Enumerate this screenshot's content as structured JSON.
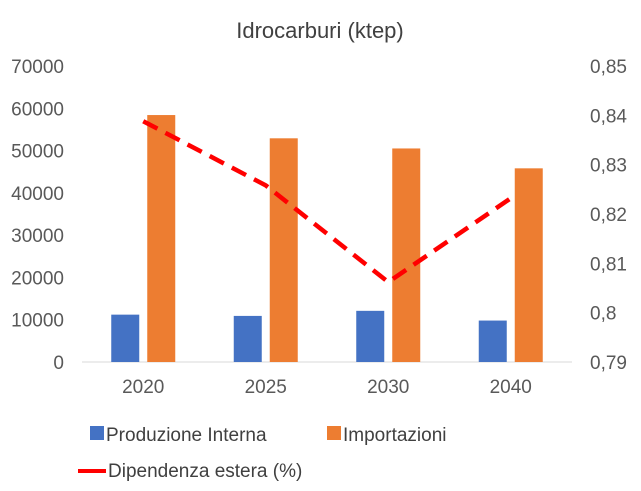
{
  "chart_data": {
    "type": "bar",
    "title": "Idrocarburi (ktep)",
    "categories": [
      "2020",
      "2025",
      "2030",
      "2040"
    ],
    "series": [
      {
        "name": "Produzione Interna",
        "type": "bar",
        "axis": "left",
        "color": "#4472C4",
        "values": [
          11200,
          10900,
          12100,
          9800
        ]
      },
      {
        "name": "Importazioni",
        "type": "bar",
        "axis": "left",
        "color": "#ED7D31",
        "values": [
          58400,
          52900,
          50500,
          45800
        ]
      },
      {
        "name": "Dipendenza estera  (%)",
        "type": "line",
        "style": "dashed",
        "axis": "right",
        "color": "#FF0000",
        "values": [
          0.8388,
          0.8258,
          0.8062,
          0.8232
        ]
      }
    ],
    "y_left": {
      "min": 0,
      "max": 70000,
      "ticks": [
        "0",
        "10000",
        "20000",
        "30000",
        "40000",
        "50000",
        "60000",
        "70000"
      ]
    },
    "y_right": {
      "min": 0.79,
      "max": 0.85,
      "ticks": [
        "0,79",
        "0,8",
        "0,81",
        "0,82",
        "0,83",
        "0,84",
        "0,85"
      ]
    },
    "legend_position": "bottom",
    "grid": false
  }
}
